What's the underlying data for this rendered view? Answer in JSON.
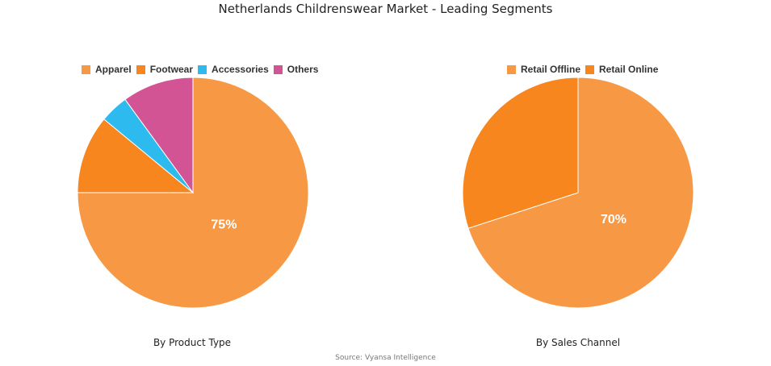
{
  "header": {
    "title": "Netherlands Childrenswear Market - Leading Segments"
  },
  "footer": {
    "source": "Source: Vyansa Intelligence"
  },
  "chart_data": [
    {
      "type": "pie",
      "title": "By Product Type",
      "series": [
        {
          "name": "Apparel",
          "value": 75,
          "color": "#F79845"
        },
        {
          "name": "Footwear",
          "value": 11,
          "color": "#F7861E"
        },
        {
          "name": "Accessories",
          "value": 4,
          "color": "#2DBBEF"
        },
        {
          "name": "Others",
          "value": 10,
          "color": "#D35495"
        }
      ],
      "data_labels": [
        {
          "series": "Apparel",
          "text": "75%"
        }
      ],
      "legend_position": "top"
    },
    {
      "type": "pie",
      "title": "By Sales Channel",
      "series": [
        {
          "name": "Retail Offline",
          "value": 70,
          "color": "#F79845"
        },
        {
          "name": "Retail Online",
          "value": 30,
          "color": "#F7861E"
        }
      ],
      "data_labels": [
        {
          "series": "Retail Offline",
          "text": "70%"
        }
      ],
      "legend_position": "top"
    }
  ]
}
